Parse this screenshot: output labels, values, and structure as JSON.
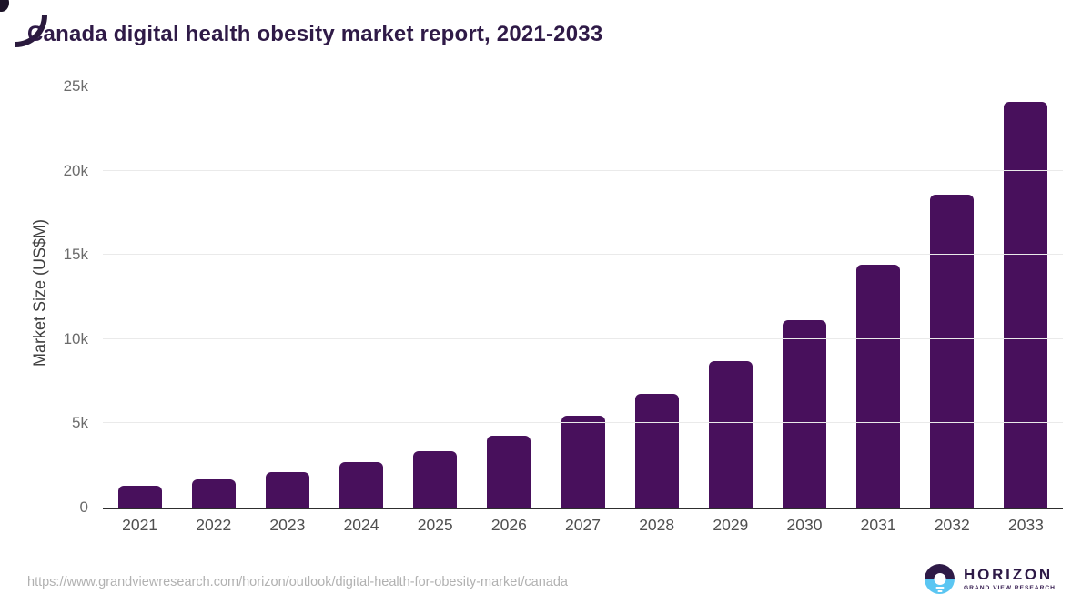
{
  "title": "Canada digital health obesity market report, 2021-2033",
  "chart_data": {
    "type": "bar",
    "title": "Canada digital health obesity market report, 2021-2033",
    "categories": [
      "2021",
      "2022",
      "2023",
      "2024",
      "2025",
      "2026",
      "2027",
      "2028",
      "2029",
      "2030",
      "2031",
      "2032",
      "2033"
    ],
    "values": [
      1310,
      1660,
      2110,
      2690,
      3350,
      4260,
      5450,
      6760,
      8700,
      11150,
      14410,
      18590,
      24070
    ],
    "xlabel": "",
    "ylabel": "Market Size (US$M)",
    "ylim": [
      0,
      25000
    ],
    "yticks": [
      0,
      5000,
      10000,
      15000,
      20000,
      25000
    ],
    "ytick_labels": [
      "0",
      "5k",
      "10k",
      "15k",
      "20k",
      "25k"
    ],
    "grid": true,
    "legend": false,
    "bar_color": "#48105c"
  },
  "footer": {
    "source_url": "https://www.grandviewresearch.com/horizon/outlook/digital-health-for-obesity-market/canada",
    "logo": {
      "name": "HORIZON",
      "subtitle": "GRAND VIEW RESEARCH"
    }
  },
  "colors": {
    "title_text": "#2f1a47",
    "bar": "#48105c",
    "axis_line": "#2e2e2e",
    "gridline": "#eaeaea",
    "tick_text": "#6b6b6b",
    "url_text": "#b1b1b1",
    "logo_purple": "#2e1a47",
    "logo_blue": "#5bc6f2"
  }
}
